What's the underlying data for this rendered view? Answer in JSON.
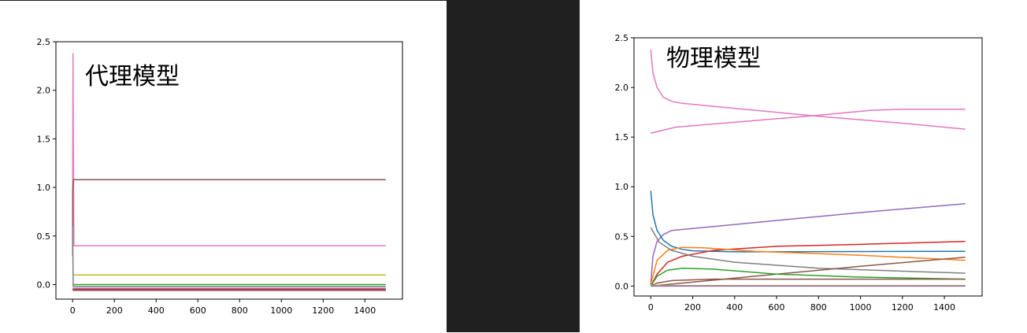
{
  "chart_data": [
    {
      "type": "line",
      "title": "",
      "annotation": "代理模型",
      "xlabel": "",
      "ylabel": "",
      "xlim": [
        -80,
        1580
      ],
      "ylim": [
        -0.15,
        2.5
      ],
      "xticks": [
        0,
        200,
        400,
        600,
        800,
        1000,
        1200,
        1400
      ],
      "yticks": [
        0.0,
        0.5,
        1.0,
        1.5,
        2.0,
        2.5
      ],
      "xtick_labels": [
        "0",
        "200",
        "400",
        "600",
        "800",
        "1000",
        "1200",
        "1400"
      ],
      "ytick_labels": [
        "0.0",
        "0.5",
        "1.0",
        "1.5",
        "2.0",
        "2.5"
      ],
      "grid": false,
      "series": [
        {
          "color": "#e377c2",
          "points": [
            [
              0,
              0.4
            ],
            [
              2,
              2.38
            ],
            [
              4,
              1.2
            ],
            [
              6,
              0.4
            ],
            [
              1500,
              0.4
            ]
          ]
        },
        {
          "color": "#8c564b",
          "points": [
            [
              0,
              0.3
            ],
            [
              1,
              1.0
            ],
            [
              4,
              1.08
            ],
            [
              10,
              1.08
            ],
            [
              1500,
              1.08
            ]
          ]
        },
        {
          "color": "#bcbd22",
          "points": [
            [
              0,
              0.1
            ],
            [
              1500,
              0.1
            ]
          ]
        },
        {
          "color": "#2ca02c",
          "points": [
            [
              0,
              0.0
            ],
            [
              1500,
              0.0
            ]
          ]
        },
        {
          "color": "#7f7f7f",
          "points": [
            [
              0,
              0.6
            ],
            [
              3,
              -0.02
            ],
            [
              1500,
              -0.02
            ]
          ]
        },
        {
          "color": "#9467bd",
          "points": [
            [
              0,
              -0.04
            ],
            [
              1500,
              -0.04
            ]
          ]
        },
        {
          "color": "#d62728",
          "points": [
            [
              0,
              -0.05
            ],
            [
              1500,
              -0.05
            ]
          ]
        },
        {
          "color": "#8c564b",
          "points": [
            [
              0,
              -0.06
            ],
            [
              1500,
              -0.06
            ]
          ]
        }
      ]
    },
    {
      "type": "line",
      "title": "",
      "annotation": "物理模型",
      "xlabel": "",
      "ylabel": "",
      "xlim": [
        -80,
        1580
      ],
      "ylim": [
        -0.1,
        2.5
      ],
      "xticks": [
        0,
        200,
        400,
        600,
        800,
        1000,
        1200,
        1400
      ],
      "yticks": [
        0.0,
        0.5,
        1.0,
        1.5,
        2.0,
        2.5
      ],
      "xtick_labels": [
        "0",
        "200",
        "400",
        "600",
        "800",
        "1000",
        "1200",
        "1400"
      ],
      "ytick_labels": [
        "0.0",
        "0.5",
        "1.0",
        "1.5",
        "2.0",
        "2.5"
      ],
      "grid": false,
      "series": [
        {
          "color": "#e377c2",
          "points": [
            [
              0,
              2.38
            ],
            [
              10,
              2.15
            ],
            [
              30,
              2.0
            ],
            [
              60,
              1.9
            ],
            [
              100,
              1.86
            ],
            [
              150,
              1.84
            ],
            [
              400,
              1.79
            ],
            [
              800,
              1.71
            ],
            [
              1200,
              1.64
            ],
            [
              1500,
              1.58
            ]
          ]
        },
        {
          "color": "#e377c2",
          "points": [
            [
              0,
              1.54
            ],
            [
              120,
              1.6
            ],
            [
              400,
              1.65
            ],
            [
              800,
              1.72
            ],
            [
              1050,
              1.77
            ],
            [
              1200,
              1.78
            ],
            [
              1500,
              1.78
            ]
          ]
        },
        {
          "color": "#9467bd",
          "points": [
            [
              0,
              0.02
            ],
            [
              10,
              0.3
            ],
            [
              30,
              0.45
            ],
            [
              60,
              0.52
            ],
            [
              100,
              0.56
            ],
            [
              150,
              0.57
            ],
            [
              500,
              0.64
            ],
            [
              1000,
              0.74
            ],
            [
              1500,
              0.83
            ]
          ]
        },
        {
          "color": "#1f77b4",
          "points": [
            [
              0,
              0.96
            ],
            [
              10,
              0.72
            ],
            [
              30,
              0.56
            ],
            [
              60,
              0.46
            ],
            [
              100,
              0.4
            ],
            [
              150,
              0.37
            ],
            [
              200,
              0.355
            ],
            [
              400,
              0.345
            ],
            [
              1500,
              0.35
            ]
          ]
        },
        {
          "color": "#d62728",
          "points": [
            [
              0,
              0.0
            ],
            [
              30,
              0.12
            ],
            [
              80,
              0.24
            ],
            [
              150,
              0.3
            ],
            [
              300,
              0.36
            ],
            [
              600,
              0.4
            ],
            [
              1000,
              0.42
            ],
            [
              1500,
              0.45
            ]
          ]
        },
        {
          "color": "#ff7f0e",
          "points": [
            [
              0,
              0.02
            ],
            [
              30,
              0.26
            ],
            [
              80,
              0.36
            ],
            [
              150,
              0.39
            ],
            [
              250,
              0.385
            ],
            [
              500,
              0.35
            ],
            [
              1000,
              0.31
            ],
            [
              1500,
              0.26
            ]
          ]
        },
        {
          "color": "#7f7f7f",
          "points": [
            [
              0,
              0.59
            ],
            [
              40,
              0.44
            ],
            [
              100,
              0.36
            ],
            [
              200,
              0.3
            ],
            [
              400,
              0.24
            ],
            [
              800,
              0.18
            ],
            [
              1200,
              0.15
            ],
            [
              1500,
              0.13
            ]
          ]
        },
        {
          "color": "#8c564b",
          "points": [
            [
              0,
              0.0
            ],
            [
              500,
              0.1
            ],
            [
              1000,
              0.2
            ],
            [
              1500,
              0.29
            ]
          ]
        },
        {
          "color": "#2ca02c",
          "points": [
            [
              0,
              0.0
            ],
            [
              30,
              0.1
            ],
            [
              80,
              0.16
            ],
            [
              150,
              0.18
            ],
            [
              300,
              0.17
            ],
            [
              600,
              0.12
            ],
            [
              1000,
              0.09
            ],
            [
              1500,
              0.07
            ]
          ]
        },
        {
          "color": "#8c564b",
          "points": [
            [
              0,
              0.0
            ],
            [
              30,
              0.03
            ],
            [
              100,
              0.055
            ],
            [
              300,
              0.07
            ],
            [
              1500,
              0.07
            ]
          ]
        },
        {
          "color": "#bcbd22",
          "points": [
            [
              0,
              0.005
            ],
            [
              1500,
              0.005
            ]
          ]
        },
        {
          "color": "#9467bd",
          "points": [
            [
              0,
              0.0
            ],
            [
              1500,
              0.0
            ]
          ]
        }
      ]
    }
  ]
}
